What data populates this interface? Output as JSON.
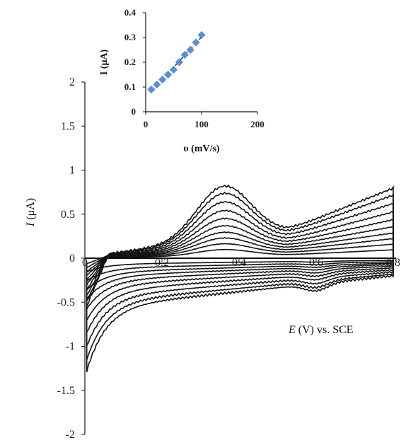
{
  "chart_data": [
    {
      "type": "line",
      "xlabel_var": "E",
      "xlabel_rest": " (V) vs. SCE",
      "ylabel_var": "I",
      "ylabel_rest": " (μA)",
      "xlim": [
        0,
        0.8
      ],
      "ylim": [
        -2,
        2
      ],
      "x_ticks": [
        0,
        0.2,
        0.4,
        0.6,
        0.8
      ],
      "x_tick_labels": [
        "0",
        "0.2",
        "0.4",
        "0.6",
        "0.8"
      ],
      "y_ticks": [
        2,
        1.5,
        1,
        0.5,
        0,
        -0.5,
        -1,
        -1.5,
        -2
      ],
      "y_tick_labels": [
        "2",
        "1.5",
        "1",
        "0.5",
        "0",
        "-0.5",
        "-1",
        "-1.5",
        "-2"
      ],
      "grid": false,
      "line_color": "#111111",
      "series": [
        {
          "scale": 0.12
        },
        {
          "scale": 0.2
        },
        {
          "scale": 0.28
        },
        {
          "scale": 0.36
        },
        {
          "scale": 0.45
        },
        {
          "scale": 0.55
        },
        {
          "scale": 0.66
        },
        {
          "scale": 0.78
        },
        {
          "scale": 0.9
        },
        {
          "scale": 1.0
        }
      ]
    },
    {
      "type": "scatter",
      "xlabel": "υ (mV/s)",
      "ylabel": "I (μA)",
      "xlim": [
        0,
        200
      ],
      "ylim": [
        0,
        0.4
      ],
      "x_ticks": [
        0,
        100,
        200
      ],
      "x_tick_labels": [
        "0",
        "100",
        "200"
      ],
      "y_ticks": [
        0.4,
        0.3,
        0.2,
        0.1,
        0
      ],
      "y_tick_labels": [
        "0.4",
        "0.3",
        "0.2",
        "0.1",
        "0"
      ],
      "x": [
        10,
        20,
        30,
        40,
        50,
        60,
        70,
        80,
        90,
        100
      ],
      "y": [
        0.09,
        0.11,
        0.13,
        0.15,
        0.17,
        0.2,
        0.23,
        0.25,
        0.28,
        0.31
      ],
      "marker_color": "#5b8fd1",
      "fit_line": true,
      "fit_color": "#222222"
    }
  ]
}
